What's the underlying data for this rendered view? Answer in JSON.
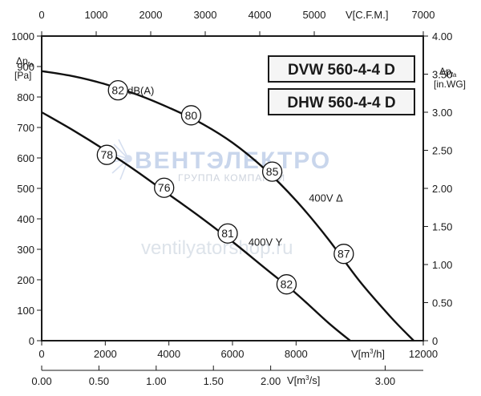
{
  "chart_data": {
    "type": "line",
    "models": [
      "DVW 560-4-4 D",
      "DHW 560-4-4 D"
    ],
    "axes": {
      "left": {
        "label_symbol": "Δp",
        "label_sub": "fa",
        "unit": "[Pa]",
        "range": [
          0,
          1000
        ],
        "ticks": [
          0,
          100,
          200,
          300,
          400,
          500,
          600,
          700,
          800,
          900,
          1000
        ]
      },
      "right": {
        "label_symbol": "Δp",
        "label_sub": "fa",
        "unit": "[in.WG]",
        "range": [
          0,
          4.0
        ],
        "ticks": [
          "0",
          "0.50",
          "1.00",
          "1.50",
          "2.00",
          "2.50",
          "3.00",
          "3.50",
          "4.00"
        ]
      },
      "top": {
        "label": "V[C.F.M.]",
        "range": [
          0,
          7000
        ],
        "ticks": [
          "0",
          "1000",
          "2000",
          "3000",
          "4000",
          "5000",
          "7000"
        ]
      },
      "bottom": {
        "label_prefix": "V[m",
        "label_sup": "3",
        "label_suffix": "/h]",
        "range": [
          0,
          12000
        ],
        "ticks": [
          "0",
          "2000",
          "4000",
          "6000",
          "8000",
          "12000"
        ]
      },
      "bottom2": {
        "label_prefix": "V[m",
        "label_sup": "3",
        "label_suffix": "/s]",
        "range": [
          0,
          3.333
        ],
        "ticks": [
          "0.00",
          "0.50",
          "1.00",
          "1.50",
          "2.00",
          "3.00"
        ]
      }
    },
    "grid": false,
    "series": [
      {
        "name": "400V Δ",
        "x": [
          0,
          1000,
          2000,
          3000,
          4000,
          5000,
          6000,
          7000,
          8000,
          9000,
          10000,
          11000,
          11700
        ],
        "y": [
          885,
          868,
          842,
          808,
          765,
          715,
          650,
          565,
          460,
          335,
          195,
          75,
          0
        ],
        "markers": [
          {
            "x": 2400,
            "y": 822,
            "label": "82"
          },
          {
            "x": 4700,
            "y": 740,
            "label": "80"
          },
          {
            "x": 7250,
            "y": 555,
            "label": "85"
          },
          {
            "x": 9500,
            "y": 285,
            "label": "87"
          }
        ]
      },
      {
        "name": "400V Y",
        "x": [
          0,
          1000,
          2000,
          3000,
          4000,
          5000,
          6000,
          7000,
          8000,
          9000,
          9700
        ],
        "y": [
          750,
          690,
          625,
          555,
          480,
          405,
          325,
          240,
          155,
          60,
          0
        ],
        "markers": [
          {
            "x": 2050,
            "y": 610,
            "label": "78"
          },
          {
            "x": 3850,
            "y": 502,
            "label": "76"
          },
          {
            "x": 5850,
            "y": 352,
            "label": "81"
          },
          {
            "x": 7700,
            "y": 185,
            "label": "82"
          }
        ]
      }
    ],
    "annotations": [
      {
        "text": "dB(A)",
        "x": 2700,
        "y": 822
      },
      {
        "text": "400V Δ",
        "x": 8400,
        "y": 470
      },
      {
        "text": "400V Y",
        "x": 6500,
        "y": 325
      }
    ]
  },
  "watermark": {
    "brand": "ВЕНТЭЛЕКТРО",
    "subtitle": "ГРУППА КОМПАНИЙ",
    "url": "ventilyatorshop.ru"
  }
}
